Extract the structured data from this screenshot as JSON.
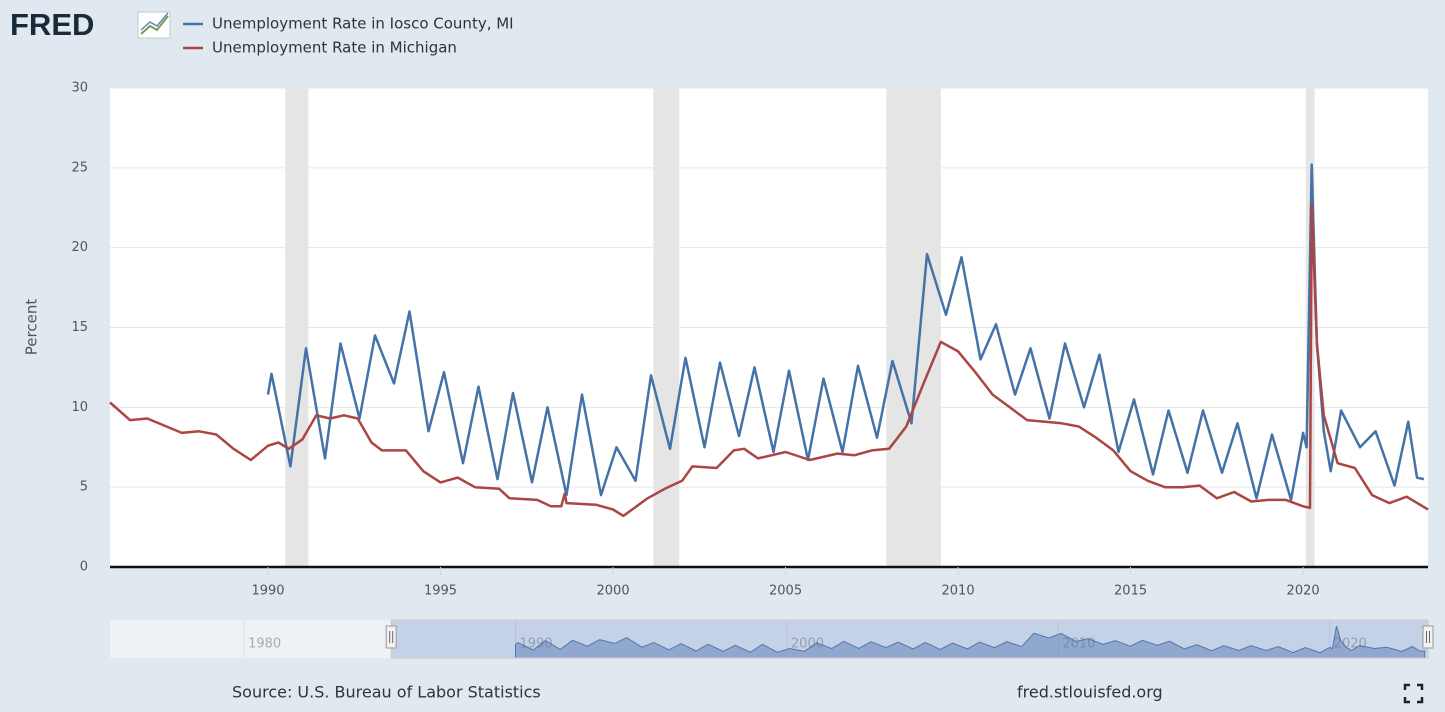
{
  "logo": "FRED",
  "chart_data": {
    "type": "line",
    "ylabel": "Percent",
    "xlim": [
      1985.42,
      2023.62
    ],
    "xticks": [
      1990,
      1995,
      2000,
      2005,
      2010,
      2015,
      2020
    ],
    "ylim": [
      0,
      30
    ],
    "yticks": [
      0,
      5,
      10,
      15,
      20,
      25,
      30
    ],
    "grid": true,
    "recessions": [
      [
        1990.5,
        1991.17
      ],
      [
        2001.17,
        2001.92
      ],
      [
        2007.92,
        2009.5
      ],
      [
        2020.08,
        2020.33
      ]
    ],
    "series": [
      {
        "name": "Unemployment Rate in Iosco County, MI",
        "color": "#4572a7",
        "x": [
          1990.0,
          1990.1,
          1990.65,
          1991.1,
          1991.65,
          1992.1,
          1992.65,
          1993.1,
          1993.65,
          1994.1,
          1994.65,
          1995.1,
          1995.65,
          1996.1,
          1996.65,
          1997.1,
          1997.65,
          1998.1,
          1998.65,
          1999.1,
          1999.65,
          2000.1,
          2000.65,
          2001.1,
          2001.65,
          2002.1,
          2002.65,
          2003.1,
          2003.65,
          2004.1,
          2004.65,
          2005.1,
          2005.65,
          2006.1,
          2006.65,
          2007.1,
          2007.65,
          2008.1,
          2008.65,
          2009.1,
          2009.65,
          2010.1,
          2010.65,
          2011.1,
          2011.65,
          2012.1,
          2012.65,
          2013.1,
          2013.65,
          2014.1,
          2014.65,
          2015.1,
          2015.65,
          2016.1,
          2016.65,
          2017.1,
          2017.65,
          2018.1,
          2018.65,
          2019.1,
          2019.65,
          2020.0,
          2020.1,
          2020.25,
          2020.4,
          2020.6,
          2020.8,
          2021.1,
          2021.65,
          2022.1,
          2022.65,
          2023.05,
          2023.3,
          2023.5
        ],
        "values": [
          10.8,
          12.1,
          6.3,
          13.7,
          6.8,
          14.0,
          9.3,
          14.5,
          11.5,
          16.0,
          8.5,
          12.2,
          6.5,
          11.3,
          5.5,
          10.9,
          5.3,
          10.0,
          4.5,
          10.8,
          4.5,
          7.5,
          5.4,
          12.0,
          7.4,
          13.1,
          7.5,
          12.8,
          8.2,
          12.5,
          7.2,
          12.3,
          6.7,
          11.8,
          7.2,
          12.6,
          8.1,
          12.9,
          9.0,
          19.6,
          15.8,
          19.4,
          13.0,
          15.2,
          10.8,
          13.7,
          9.3,
          14.0,
          10.0,
          13.3,
          7.2,
          10.5,
          5.8,
          9.8,
          5.9,
          9.8,
          5.9,
          9.0,
          4.3,
          8.3,
          4.2,
          8.4,
          7.5,
          25.2,
          14.0,
          8.5,
          6.0,
          9.8,
          7.5,
          8.5,
          5.1,
          9.1,
          5.6,
          5.5
        ]
      },
      {
        "name": "Unemployment Rate in Michigan",
        "color": "#aa4643",
        "x": [
          1985.42,
          1986.0,
          1986.5,
          1987.5,
          1988.0,
          1988.5,
          1989.0,
          1989.5,
          1990.0,
          1990.3,
          1990.6,
          1991.0,
          1991.4,
          1991.8,
          1992.2,
          1992.6,
          1993.0,
          1993.3,
          1994.0,
          1994.5,
          1995.0,
          1995.5,
          1996.0,
          1996.7,
          1997.0,
          1997.8,
          1998.2,
          1998.5,
          1998.6,
          1998.65,
          1999.5,
          2000.0,
          2000.3,
          2001.0,
          2001.5,
          2002.0,
          2002.3,
          2003.0,
          2003.5,
          2003.8,
          2004.2,
          2005.0,
          2005.7,
          2006.5,
          2007.0,
          2007.5,
          2008.0,
          2008.5,
          2009.0,
          2009.5,
          2010.0,
          2010.5,
          2011.0,
          2011.5,
          2012.0,
          2013.0,
          2013.5,
          2014.0,
          2014.5,
          2015.0,
          2015.5,
          2016.0,
          2016.5,
          2017.0,
          2017.5,
          2018.0,
          2018.5,
          2019.0,
          2019.5,
          2020.0,
          2020.2,
          2020.25,
          2020.4,
          2020.6,
          2021.0,
          2021.5,
          2022.0,
          2022.5,
          2023.0,
          2023.62
        ],
        "values": [
          10.3,
          9.2,
          9.3,
          8.4,
          8.5,
          8.3,
          7.4,
          6.7,
          7.6,
          7.8,
          7.4,
          8.0,
          9.5,
          9.3,
          9.5,
          9.3,
          7.8,
          7.3,
          7.3,
          6.0,
          5.3,
          5.6,
          5.0,
          4.9,
          4.3,
          4.2,
          3.8,
          3.8,
          4.6,
          4.0,
          3.9,
          3.6,
          3.2,
          4.3,
          4.9,
          5.4,
          6.3,
          6.2,
          7.3,
          7.4,
          6.8,
          7.2,
          6.7,
          7.1,
          7.0,
          7.3,
          7.4,
          8.8,
          11.5,
          14.1,
          13.5,
          12.2,
          10.8,
          10.0,
          9.2,
          9.0,
          8.8,
          8.1,
          7.3,
          6.0,
          5.4,
          5.0,
          5.0,
          5.1,
          4.3,
          4.7,
          4.1,
          4.2,
          4.2,
          3.8,
          3.7,
          22.7,
          14.0,
          9.5,
          6.5,
          6.2,
          4.5,
          4.0,
          4.4,
          3.6
        ]
      }
    ]
  },
  "navigator": {
    "xlim": [
      1975.06,
      2023.62
    ],
    "xticks": [
      1980,
      1990,
      2000,
      2010,
      2020
    ]
  },
  "footer": {
    "source": "Source: U.S. Bureau of Labor Statistics",
    "site": "fred.stlouisfed.org"
  }
}
